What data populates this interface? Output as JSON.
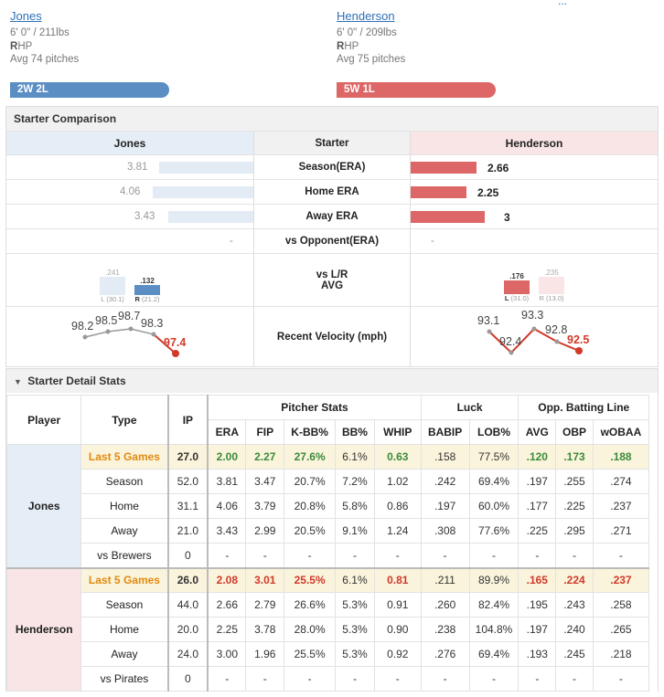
{
  "top_link": "...",
  "players": [
    {
      "name": "Jones",
      "hw": "6' 0\" / 211lbs",
      "hand_bold": "R",
      "hand_rest": "HP",
      "avg_pitches": "Avg 74 pitches",
      "record": "2W 2L",
      "color": "#5b8fc4"
    },
    {
      "name": "Henderson",
      "hw": "6' 0\" / 209lbs",
      "hand_bold": "R",
      "hand_rest": "HP",
      "avg_pitches": "Avg 75 pitches",
      "record": "5W 1L",
      "color": "#dd6666"
    }
  ],
  "comparison": {
    "title": "Starter Comparison",
    "left_header": "Jones",
    "mid_header": "Starter",
    "right_header": "Henderson",
    "rows": [
      {
        "label": "Season(ERA)",
        "left": "3.81",
        "right": "2.66",
        "left_val": 3.81,
        "right_val": 2.66
      },
      {
        "label": "Home ERA",
        "left": "4.06",
        "right": "2.25",
        "left_val": 4.06,
        "right_val": 2.25
      },
      {
        "label": "Away ERA",
        "left": "3.43",
        "right": "3",
        "left_val": 3.43,
        "right_val": 3.0
      },
      {
        "label": "vs Opponent(ERA)",
        "left": "-",
        "right": "-"
      }
    ],
    "lr": {
      "label_line1": "vs L/R",
      "label_line2": "AVG",
      "jones": {
        "L": ".241",
        "L_lbl": "L",
        "L_ip": "(30.1)",
        "R": ".132",
        "R_lbl": "R",
        "R_ip": "(21.2)"
      },
      "henderson": {
        "L": ".176",
        "L_lbl": "L",
        "L_ip": "(31.0)",
        "R": ".235",
        "R_lbl": "R",
        "R_ip": "(13.0)"
      }
    },
    "velocity": {
      "label": "Recent Velocity (mph)",
      "jones": [
        "98.2",
        "98.5",
        "98.7",
        "98.3",
        "97.4"
      ],
      "henderson": [
        "93.1",
        "92.4",
        "93.3",
        "92.8",
        "92.5"
      ]
    }
  },
  "details": {
    "title": "Starter Detail Stats",
    "headers": {
      "player": "Player",
      "type": "Type",
      "ip": "IP",
      "group1": "Pitcher Stats",
      "group2": "Luck",
      "group3": "Opp. Batting Line",
      "cols": [
        "ERA",
        "FIP",
        "K-BB%",
        "BB%",
        "WHIP",
        "BABIP",
        "LOB%",
        "AVG",
        "OBP",
        "wOBAA"
      ]
    },
    "jones": {
      "name": "Jones",
      "rows": [
        {
          "type": "Last 5 Games",
          "ip": "27.0",
          "v": [
            "2.00",
            "2.27",
            "27.6%",
            "6.1%",
            "0.63",
            ".158",
            "77.5%",
            ".120",
            ".173",
            ".188"
          ]
        },
        {
          "type": "Season",
          "ip": "52.0",
          "v": [
            "3.81",
            "3.47",
            "20.7%",
            "7.2%",
            "1.02",
            ".242",
            "69.4%",
            ".197",
            ".255",
            ".274"
          ]
        },
        {
          "type": "Home",
          "ip": "31.1",
          "v": [
            "4.06",
            "3.79",
            "20.8%",
            "5.8%",
            "0.86",
            ".197",
            "60.0%",
            ".177",
            ".225",
            ".237"
          ]
        },
        {
          "type": "Away",
          "ip": "21.0",
          "v": [
            "3.43",
            "2.99",
            "20.5%",
            "9.1%",
            "1.24",
            ".308",
            "77.6%",
            ".225",
            ".295",
            ".271"
          ]
        },
        {
          "type": "vs Brewers",
          "ip": "0",
          "v": [
            "-",
            "-",
            "-",
            "-",
            "-",
            "-",
            "-",
            "-",
            "-",
            "-"
          ]
        }
      ]
    },
    "henderson": {
      "name": "Henderson",
      "rows": [
        {
          "type": "Last 5 Games",
          "ip": "26.0",
          "v": [
            "2.08",
            "3.01",
            "25.5%",
            "6.1%",
            "0.81",
            ".211",
            "89.9%",
            ".165",
            ".224",
            ".237"
          ]
        },
        {
          "type": "Season",
          "ip": "44.0",
          "v": [
            "2.66",
            "2.79",
            "26.6%",
            "5.3%",
            "0.91",
            ".260",
            "82.4%",
            ".195",
            ".243",
            ".258"
          ]
        },
        {
          "type": "Home",
          "ip": "20.0",
          "v": [
            "2.25",
            "3.78",
            "28.0%",
            "5.3%",
            "0.90",
            ".238",
            "104.8%",
            ".197",
            ".240",
            ".265"
          ]
        },
        {
          "type": "Away",
          "ip": "24.0",
          "v": [
            "3.00",
            "1.96",
            "25.5%",
            "5.3%",
            "0.92",
            ".276",
            "69.4%",
            ".193",
            ".245",
            ".218"
          ]
        },
        {
          "type": "vs Pirates",
          "ip": "0",
          "v": [
            "-",
            "-",
            "-",
            "-",
            "-",
            "-",
            "-",
            "-",
            "-",
            "-"
          ]
        }
      ]
    }
  }
}
